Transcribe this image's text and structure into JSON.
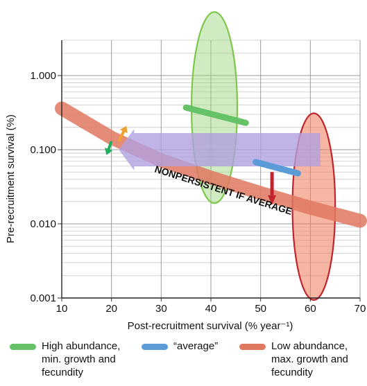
{
  "chart_data": {
    "type": "line",
    "xlabel": "Post-recruitment survival (% year⁻¹)",
    "ylabel": "Pre-recruitment survival (%)",
    "xlim": [
      10,
      70
    ],
    "ylim": [
      0.001,
      3
    ],
    "yscale": "log",
    "grid": true,
    "x_ticks": [
      "10",
      "20",
      "30",
      "40",
      "50",
      "60",
      "70"
    ],
    "y_ticks": [
      "0.001",
      "0.010",
      "0.100",
      "1.000"
    ],
    "series": [
      {
        "name": "High abundance, min. growth and fecundity",
        "color": "#66c266",
        "points": [
          [
            35,
            0.37
          ],
          [
            47,
            0.23
          ]
        ],
        "ellipse": {
          "cx": 40.7,
          "cy": 0.11,
          "x_half_width": 4.6,
          "y_top": 7.2,
          "y_bottom": 0.019
        }
      },
      {
        "name": "“average”",
        "color": "#5b9bd8",
        "points": [
          [
            49,
            0.068
          ],
          [
            57.5,
            0.048
          ]
        ]
      },
      {
        "name": "Low abundance, max. growth and fecundity",
        "color": "#e07860",
        "points": [
          [
            10,
            0.36
          ],
          [
            20,
            0.145
          ],
          [
            30,
            0.072
          ],
          [
            40,
            0.042
          ],
          [
            50,
            0.026
          ],
          [
            60,
            0.0165
          ],
          [
            70,
            0.011
          ]
        ],
        "ellipse": {
          "cx": 60.7,
          "cy": 0.0075,
          "x_half_width": 4.3,
          "y_top": 0.31,
          "y_bottom": 0.00094
        }
      }
    ],
    "annotations": [
      {
        "text": "NONPERSISTENT IF AVERAGE"
      }
    ],
    "arrows": [
      {
        "color": "#b0a0e0",
        "from": [
          62,
          0.1
        ],
        "to": [
          21.5,
          0.1
        ]
      },
      {
        "color": "#c0242c",
        "from": [
          52.3,
          0.05
        ],
        "to": [
          52.3,
          0.018
        ]
      },
      {
        "color": "#f0a030",
        "from": [
          21.5,
          0.13
        ],
        "to": [
          23,
          0.21
        ]
      },
      {
        "color": "#22b060",
        "from": [
          20,
          0.13
        ],
        "to": [
          19,
          0.085
        ]
      }
    ]
  },
  "legend": {
    "items": [
      {
        "label": "High abundance,\nmin. growth and\nfecundity",
        "color": "#66c266"
      },
      {
        "label": "“average”",
        "color": "#5b9bd8"
      },
      {
        "label": "Low abundance,\nmax. growth and\nfecundity",
        "color": "#e07860"
      }
    ]
  }
}
